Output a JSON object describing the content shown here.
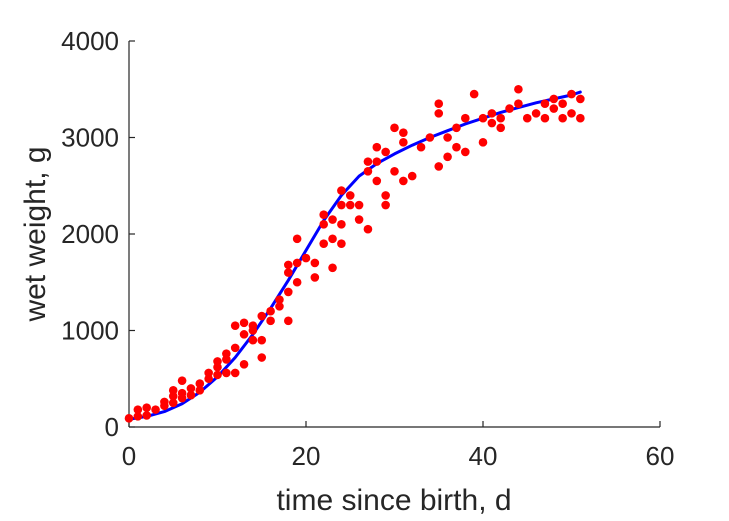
{
  "chart_data": {
    "type": "scatter",
    "title": "",
    "xlabel": "time since birth, d",
    "ylabel": "wet weight, g",
    "xlim": [
      0,
      60
    ],
    "ylim": [
      0,
      4000
    ],
    "xticks": [
      0,
      20,
      40,
      60
    ],
    "yticks": [
      0,
      1000,
      2000,
      3000,
      4000
    ],
    "x_tick_labels": [
      "0",
      "20",
      "40",
      "60"
    ],
    "y_tick_labels": [
      "0",
      "1000",
      "2000",
      "3000",
      "4000"
    ],
    "grid": false,
    "legend": "none",
    "series": [
      {
        "kind": "scatter",
        "color": "#ff0000",
        "points": [
          [
            0,
            90
          ],
          [
            1,
            110
          ],
          [
            1,
            180
          ],
          [
            2,
            120
          ],
          [
            2,
            200
          ],
          [
            3,
            180
          ],
          [
            4,
            220
          ],
          [
            4,
            260
          ],
          [
            5,
            250
          ],
          [
            5,
            320
          ],
          [
            5,
            380
          ],
          [
            6,
            300
          ],
          [
            6,
            350
          ],
          [
            6,
            480
          ],
          [
            7,
            330
          ],
          [
            7,
            400
          ],
          [
            8,
            380
          ],
          [
            8,
            450
          ],
          [
            9,
            500
          ],
          [
            9,
            560
          ],
          [
            10,
            540
          ],
          [
            10,
            620
          ],
          [
            10,
            680
          ],
          [
            11,
            560
          ],
          [
            11,
            700
          ],
          [
            11,
            760
          ],
          [
            12,
            560
          ],
          [
            12,
            820
          ],
          [
            12,
            1050
          ],
          [
            13,
            650
          ],
          [
            13,
            960
          ],
          [
            13,
            1080
          ],
          [
            14,
            900
          ],
          [
            14,
            1000
          ],
          [
            14,
            1050
          ],
          [
            15,
            720
          ],
          [
            15,
            900
          ],
          [
            15,
            1150
          ],
          [
            16,
            1100
          ],
          [
            16,
            1200
          ],
          [
            17,
            1250
          ],
          [
            17,
            1320
          ],
          [
            18,
            1100
          ],
          [
            18,
            1400
          ],
          [
            18,
            1600
          ],
          [
            18,
            1680
          ],
          [
            19,
            1500
          ],
          [
            19,
            1700
          ],
          [
            19,
            1950
          ],
          [
            20,
            1750
          ],
          [
            21,
            1550
          ],
          [
            21,
            1700
          ],
          [
            22,
            1900
          ],
          [
            22,
            2100
          ],
          [
            22,
            2200
          ],
          [
            23,
            1650
          ],
          [
            23,
            1950
          ],
          [
            23,
            2150
          ],
          [
            24,
            1900
          ],
          [
            24,
            2100
          ],
          [
            24,
            2300
          ],
          [
            24,
            2450
          ],
          [
            25,
            2300
          ],
          [
            25,
            2400
          ],
          [
            26,
            2150
          ],
          [
            26,
            2300
          ],
          [
            27,
            2050
          ],
          [
            27,
            2750
          ],
          [
            27,
            2650
          ],
          [
            28,
            2550
          ],
          [
            28,
            2750
          ],
          [
            28,
            2900
          ],
          [
            29,
            2400
          ],
          [
            29,
            2300
          ],
          [
            29,
            2850
          ],
          [
            30,
            2650
          ],
          [
            30,
            3100
          ],
          [
            31,
            2550
          ],
          [
            31,
            2950
          ],
          [
            31,
            3050
          ],
          [
            32,
            2600
          ],
          [
            33,
            2900
          ],
          [
            34,
            3000
          ],
          [
            35,
            2700
          ],
          [
            35,
            3250
          ],
          [
            35,
            3350
          ],
          [
            36,
            2800
          ],
          [
            36,
            3000
          ],
          [
            37,
            2900
          ],
          [
            37,
            3100
          ],
          [
            38,
            2850
          ],
          [
            38,
            3200
          ],
          [
            39,
            3450
          ],
          [
            40,
            2950
          ],
          [
            40,
            3200
          ],
          [
            41,
            3250
          ],
          [
            41,
            3150
          ],
          [
            42,
            3100
          ],
          [
            42,
            3200
          ],
          [
            43,
            3300
          ],
          [
            44,
            3350
          ],
          [
            44,
            3500
          ],
          [
            45,
            3200
          ],
          [
            46,
            3250
          ],
          [
            47,
            3200
          ],
          [
            47,
            3350
          ],
          [
            48,
            3300
          ],
          [
            48,
            3400
          ],
          [
            49,
            3350
          ],
          [
            49,
            3200
          ],
          [
            50,
            3450
          ],
          [
            50,
            3250
          ],
          [
            51,
            3200
          ],
          [
            51,
            3400
          ]
        ]
      },
      {
        "kind": "line",
        "color": "#0000ff",
        "points": [
          [
            0,
            80
          ],
          [
            2,
            110
          ],
          [
            4,
            160
          ],
          [
            6,
            240
          ],
          [
            8,
            360
          ],
          [
            10,
            520
          ],
          [
            12,
            720
          ],
          [
            14,
            960
          ],
          [
            16,
            1230
          ],
          [
            18,
            1520
          ],
          [
            20,
            1830
          ],
          [
            22,
            2140
          ],
          [
            24,
            2400
          ],
          [
            26,
            2600
          ],
          [
            28,
            2730
          ],
          [
            30,
            2830
          ],
          [
            32,
            2920
          ],
          [
            34,
            3000
          ],
          [
            36,
            3070
          ],
          [
            38,
            3140
          ],
          [
            40,
            3200
          ],
          [
            42,
            3260
          ],
          [
            44,
            3310
          ],
          [
            46,
            3360
          ],
          [
            48,
            3400
          ],
          [
            50,
            3440
          ],
          [
            51,
            3470
          ]
        ]
      }
    ]
  }
}
